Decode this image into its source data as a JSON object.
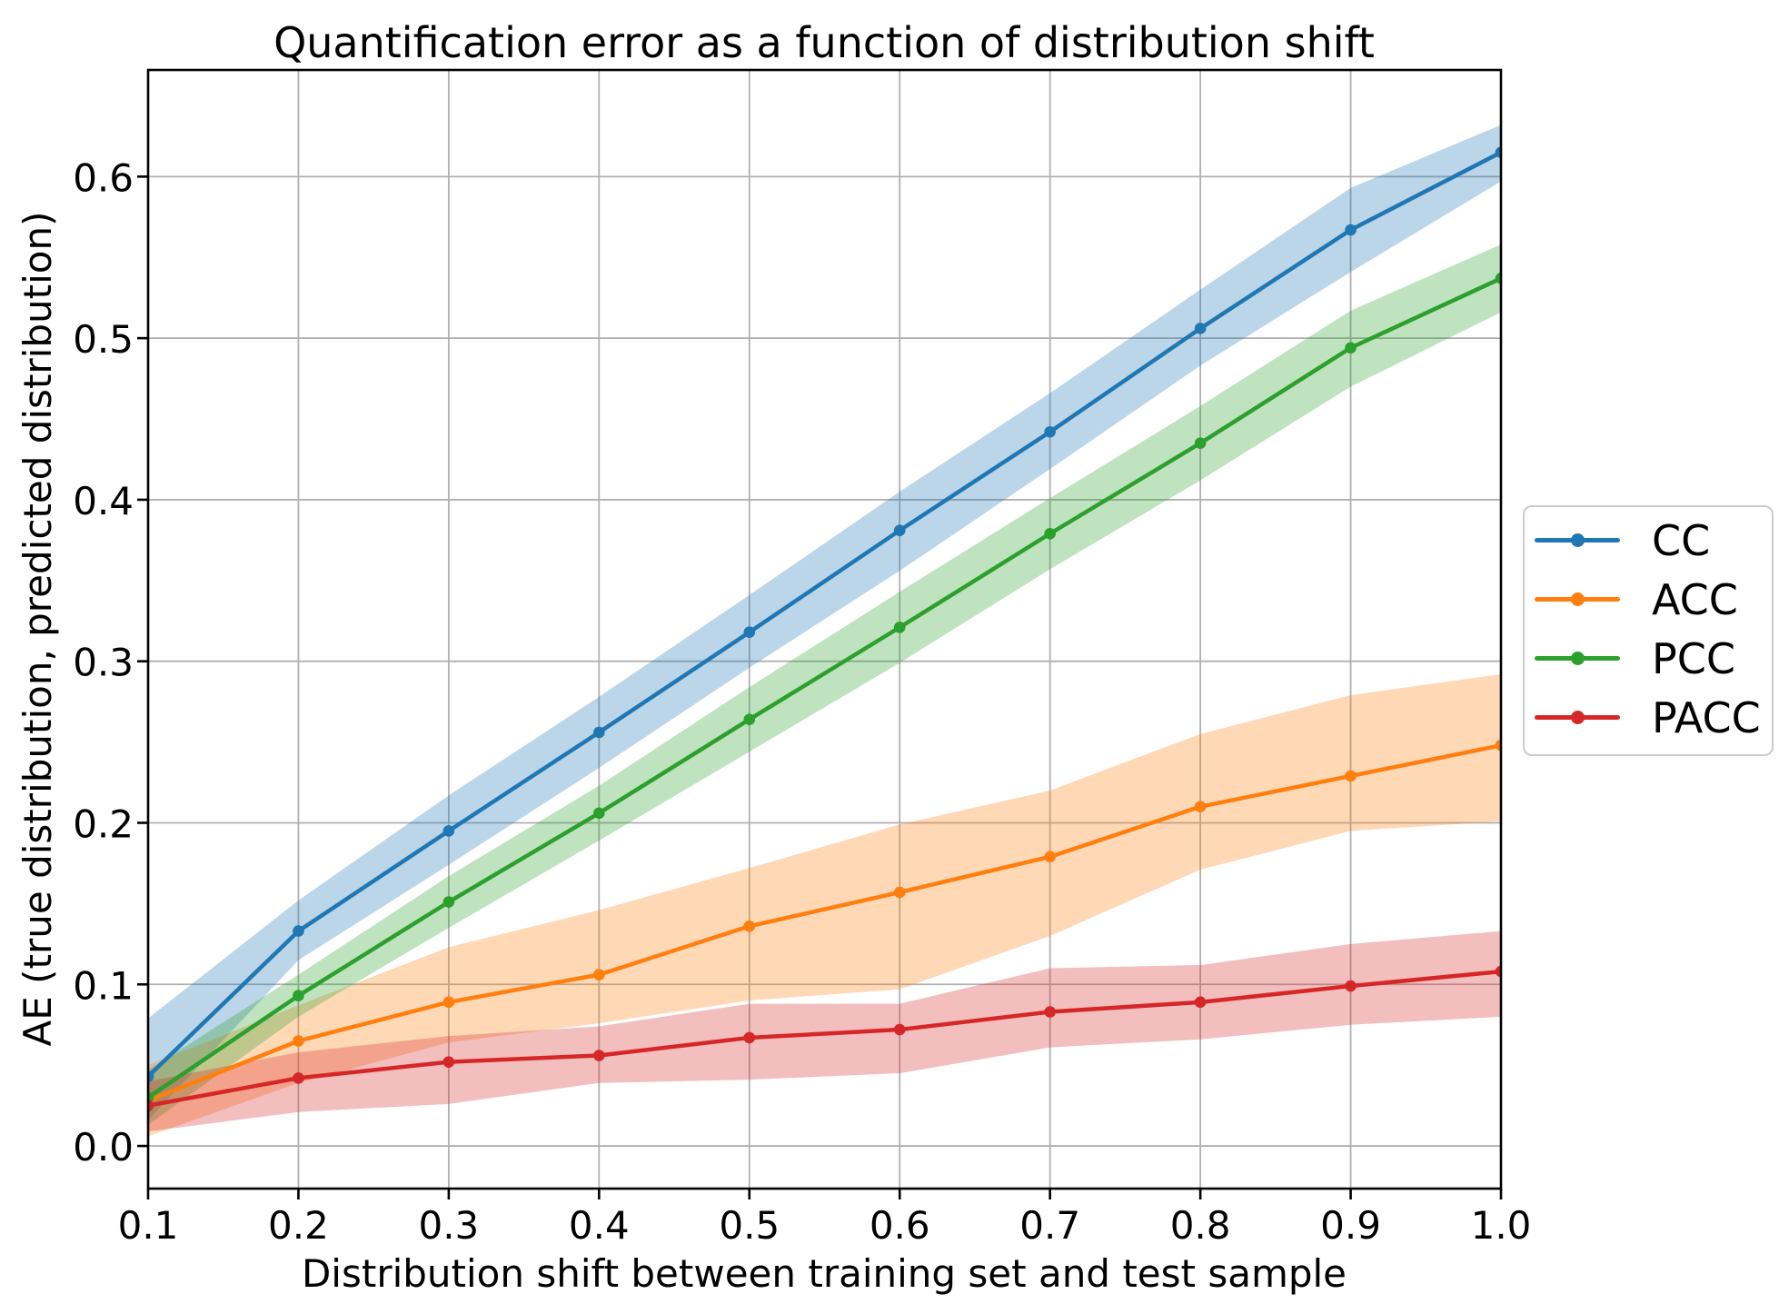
{
  "figure": {
    "background": "#ffffff"
  },
  "chart_data": {
    "type": "line",
    "title": "Quantification error as a function of distribution shift",
    "xlabel": "Distribution shift between training set and test sample",
    "ylabel": "AE (true distribution, predicted distribution)",
    "x": [
      0.1,
      0.2,
      0.3,
      0.4,
      0.5,
      0.6,
      0.7,
      0.8,
      0.9,
      1.0
    ],
    "xticks": [
      0.1,
      0.2,
      0.3,
      0.4,
      0.5,
      0.6,
      0.7,
      0.8,
      0.9,
      1.0
    ],
    "xtick_labels": [
      "0.1",
      "0.2",
      "0.3",
      "0.4",
      "0.5",
      "0.6",
      "0.7",
      "0.8",
      "0.9",
      "1.0"
    ],
    "yticks": [
      0.0,
      0.1,
      0.2,
      0.3,
      0.4,
      0.5,
      0.6
    ],
    "ytick_labels": [
      "0.0",
      "0.1",
      "0.2",
      "0.3",
      "0.4",
      "0.5",
      "0.6"
    ],
    "xlim": [
      0.1,
      1.0
    ],
    "ylim": [
      -0.0264,
      0.666
    ],
    "grid": true,
    "grid_color": "#b0b0b0",
    "axis_color": "#000000",
    "band_opacity": 0.3,
    "legend_position": "outside-right",
    "legend_border_color": "#cccccc",
    "series": [
      {
        "name": "CC",
        "color": "#1f77b4",
        "values": [
          0.043,
          0.133,
          0.195,
          0.256,
          0.318,
          0.381,
          0.442,
          0.506,
          0.567,
          0.615
        ],
        "band_lower": [
          0.016,
          0.115,
          0.174,
          0.234,
          0.296,
          0.356,
          0.419,
          0.483,
          0.541,
          0.597
        ],
        "band_upper": [
          0.079,
          0.152,
          0.217,
          0.278,
          0.341,
          0.405,
          0.466,
          0.53,
          0.593,
          0.632
        ]
      },
      {
        "name": "ACC",
        "color": "#ff7f0e",
        "values": [
          0.028,
          0.065,
          0.089,
          0.106,
          0.136,
          0.157,
          0.179,
          0.21,
          0.229,
          0.248
        ],
        "band_lower": [
          0.006,
          0.039,
          0.064,
          0.076,
          0.09,
          0.097,
          0.13,
          0.171,
          0.195,
          0.201
        ],
        "band_upper": [
          0.05,
          0.087,
          0.123,
          0.146,
          0.172,
          0.199,
          0.22,
          0.255,
          0.279,
          0.292
        ]
      },
      {
        "name": "PCC",
        "color": "#2ca02c",
        "values": [
          0.03,
          0.093,
          0.151,
          0.206,
          0.264,
          0.321,
          0.379,
          0.435,
          0.494,
          0.537
        ],
        "band_lower": [
          0.013,
          0.08,
          0.135,
          0.189,
          0.244,
          0.299,
          0.357,
          0.412,
          0.47,
          0.516
        ],
        "band_upper": [
          0.047,
          0.106,
          0.167,
          0.223,
          0.284,
          0.343,
          0.401,
          0.458,
          0.517,
          0.558
        ]
      },
      {
        "name": "PACC",
        "color": "#d62728",
        "values": [
          0.025,
          0.042,
          0.052,
          0.056,
          0.067,
          0.072,
          0.083,
          0.089,
          0.099,
          0.108
        ],
        "band_lower": [
          0.009,
          0.021,
          0.026,
          0.039,
          0.041,
          0.045,
          0.061,
          0.066,
          0.075,
          0.08
        ],
        "band_upper": [
          0.04,
          0.058,
          0.068,
          0.074,
          0.088,
          0.088,
          0.11,
          0.112,
          0.125,
          0.133
        ]
      }
    ]
  }
}
